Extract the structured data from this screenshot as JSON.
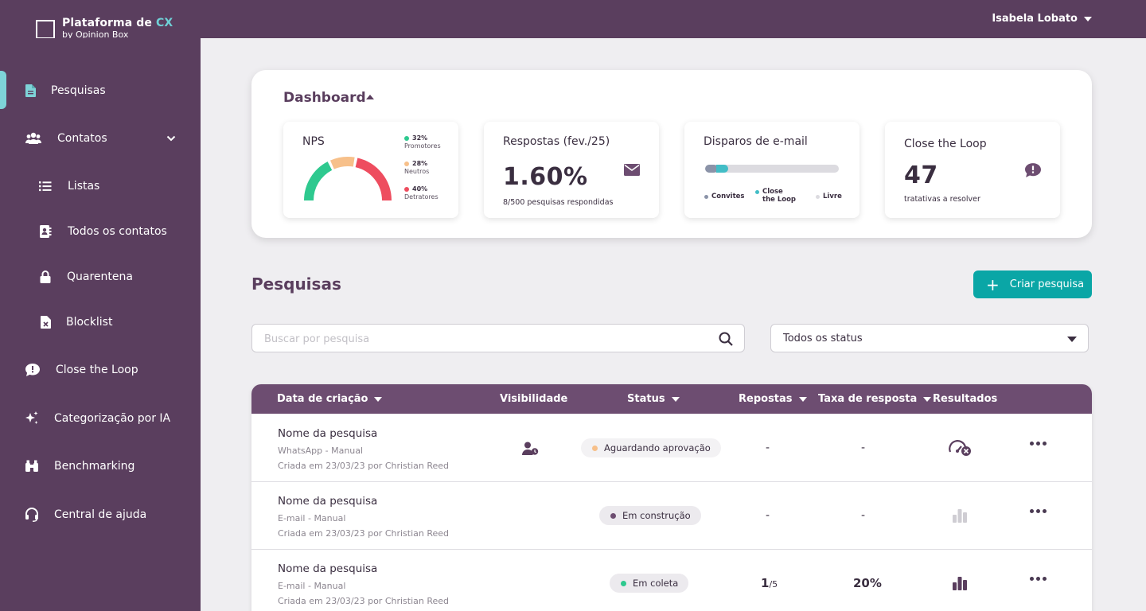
{
  "app": {
    "logo_title": "Plataforma de ",
    "logo_title_accent": "CX",
    "logo_subtitle": "by Opinion Box",
    "user_name": "Isabela Lobato"
  },
  "sidebar": {
    "items": [
      {
        "label": "Pesquisas",
        "icon": "file-icon",
        "active": true
      },
      {
        "label": "Contatos",
        "icon": "users-icon"
      },
      {
        "label": "Listas",
        "icon": "list-icon"
      },
      {
        "label": "Todos os contatos",
        "icon": "contact-book-icon"
      },
      {
        "label": "Quarentena",
        "icon": "lock-icon"
      },
      {
        "label": "Blocklist",
        "icon": "file-x-icon"
      },
      {
        "label": "Close the Loop",
        "icon": "chat-alert-icon"
      },
      {
        "label": "Categorização por IA",
        "icon": "sparkles-icon"
      },
      {
        "label": "Benchmarking",
        "icon": "binoculars-icon"
      },
      {
        "label": "Central de ajuda",
        "icon": "headset-icon"
      }
    ]
  },
  "dashboard": {
    "title": "Dashboard",
    "nps": {
      "title": "NPS",
      "promotores_pct": "32%",
      "promotores_label": "Promotores",
      "neutros_pct": "28%",
      "neutros_label": "Neutros",
      "detratores_pct": "40%",
      "detratores_label": "Detratores",
      "colors": {
        "promotores": "#2ec98f",
        "neutros": "#f7c08a",
        "detratores": "#ee4d5f"
      }
    },
    "respostas": {
      "title": "Respostas (fev./25)",
      "value": "1.60%",
      "sub": "8/500 pesquisas respondidas"
    },
    "disparos": {
      "title": "Disparos de e-mail",
      "legend_convites": "Convites",
      "legend_close_1": "Close",
      "legend_close_2": "the Loop",
      "legend_livre": "Livre",
      "colors": {
        "convites": "#8b93a8",
        "close": "#42bdc6",
        "livre": "#dcdbe0"
      }
    },
    "close_loop": {
      "title": "Close the Loop",
      "value": "47",
      "sub": "tratativas a resolver"
    }
  },
  "pesquisas": {
    "title": "Pesquisas",
    "create_button": "Criar pesquisa",
    "search_placeholder": "Buscar por pesquisa",
    "status_filter": "Todos os status"
  },
  "table": {
    "headers": {
      "data": "Data de criação",
      "visibilidade": "Visibilidade",
      "status": "Status",
      "repostas": "Repostas",
      "taxa": "Taxa de resposta",
      "resultados": "Resultados"
    },
    "rows": [
      {
        "name": "Nome da pesquisa",
        "channel": "WhatsApp - Manual",
        "created": "Criada em 23/03/23 por Christian Reed",
        "status": "Aguardando aprovação",
        "status_color": "#f7c08a",
        "responses": "-",
        "rate": "-"
      },
      {
        "name": "Nome da pesquisa",
        "channel": "E-mail - Manual",
        "created": "Criada em 23/03/23 por Christian Reed",
        "status": "Em construção",
        "status_color": "#6d4d71",
        "responses": "-",
        "rate": "-"
      },
      {
        "name": "Nome da pesquisa",
        "channel": "E-mail - Manual",
        "created": "Criada em 23/03/23 por Christian Reed",
        "status": "Em coleta",
        "status_color": "#2ec98f",
        "responses_main": "1",
        "responses_total": "/5",
        "rate": "20%"
      }
    ]
  }
}
